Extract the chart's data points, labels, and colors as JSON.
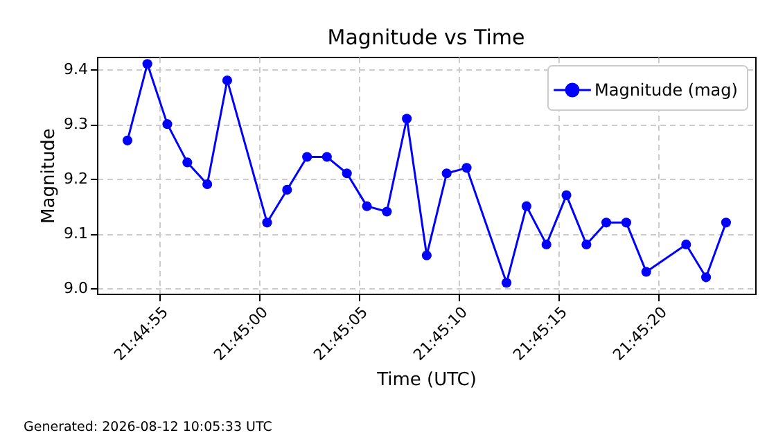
{
  "chart_data": {
    "type": "line",
    "title": "Magnitude vs Time",
    "xlabel": "Time (UTC)",
    "ylabel": "Magnitude",
    "annotations": [
      "Generated: 2026-08-12 10:05:33 UTC"
    ],
    "x": [
      21.748167,
      21.748444,
      21.748722,
      21.749,
      21.749278,
      21.749556,
      21.750111,
      21.750389,
      21.750667,
      21.750944,
      21.751222,
      21.7515,
      21.751778,
      21.752056,
      21.752333,
      21.752611,
      21.752889,
      21.753444,
      21.753722,
      21.754,
      21.754278,
      21.754556,
      21.754833,
      21.755111,
      21.755389,
      21.755944,
      21.756222,
      21.7565
    ],
    "series": [
      {
        "name": "Magnitude (mag)",
        "color": "#0000ff",
        "values": [
          9.27,
          9.41,
          9.3,
          9.23,
          9.19,
          9.38,
          9.12,
          9.18,
          9.24,
          9.24,
          9.21,
          9.15,
          9.14,
          9.31,
          9.06,
          9.21,
          9.22,
          9.01,
          9.15,
          9.08,
          9.17,
          9.08,
          9.12,
          9.12,
          9.03,
          9.08,
          9.02,
          9.12
        ]
      }
    ],
    "xlim": [
      21.747743,
      21.756906
    ],
    "ylim": [
      8.99,
      9.423
    ],
    "xticks": [
      {
        "value": 21.7486111,
        "label": "21:44:55"
      },
      {
        "value": 21.75,
        "label": "21:45:00"
      },
      {
        "value": 21.7513889,
        "label": "21:45:05"
      },
      {
        "value": 21.7527778,
        "label": "21:45:10"
      },
      {
        "value": 21.7541667,
        "label": "21:45:15"
      },
      {
        "value": 21.7555556,
        "label": "21:45:20"
      }
    ],
    "yticks": [
      {
        "value": 9,
        "label": "9.0"
      },
      9.1,
      9.2,
      9.3,
      9.4
    ],
    "grid": true,
    "legend": "top right",
    "marker": "circle",
    "line_style": "solid"
  }
}
